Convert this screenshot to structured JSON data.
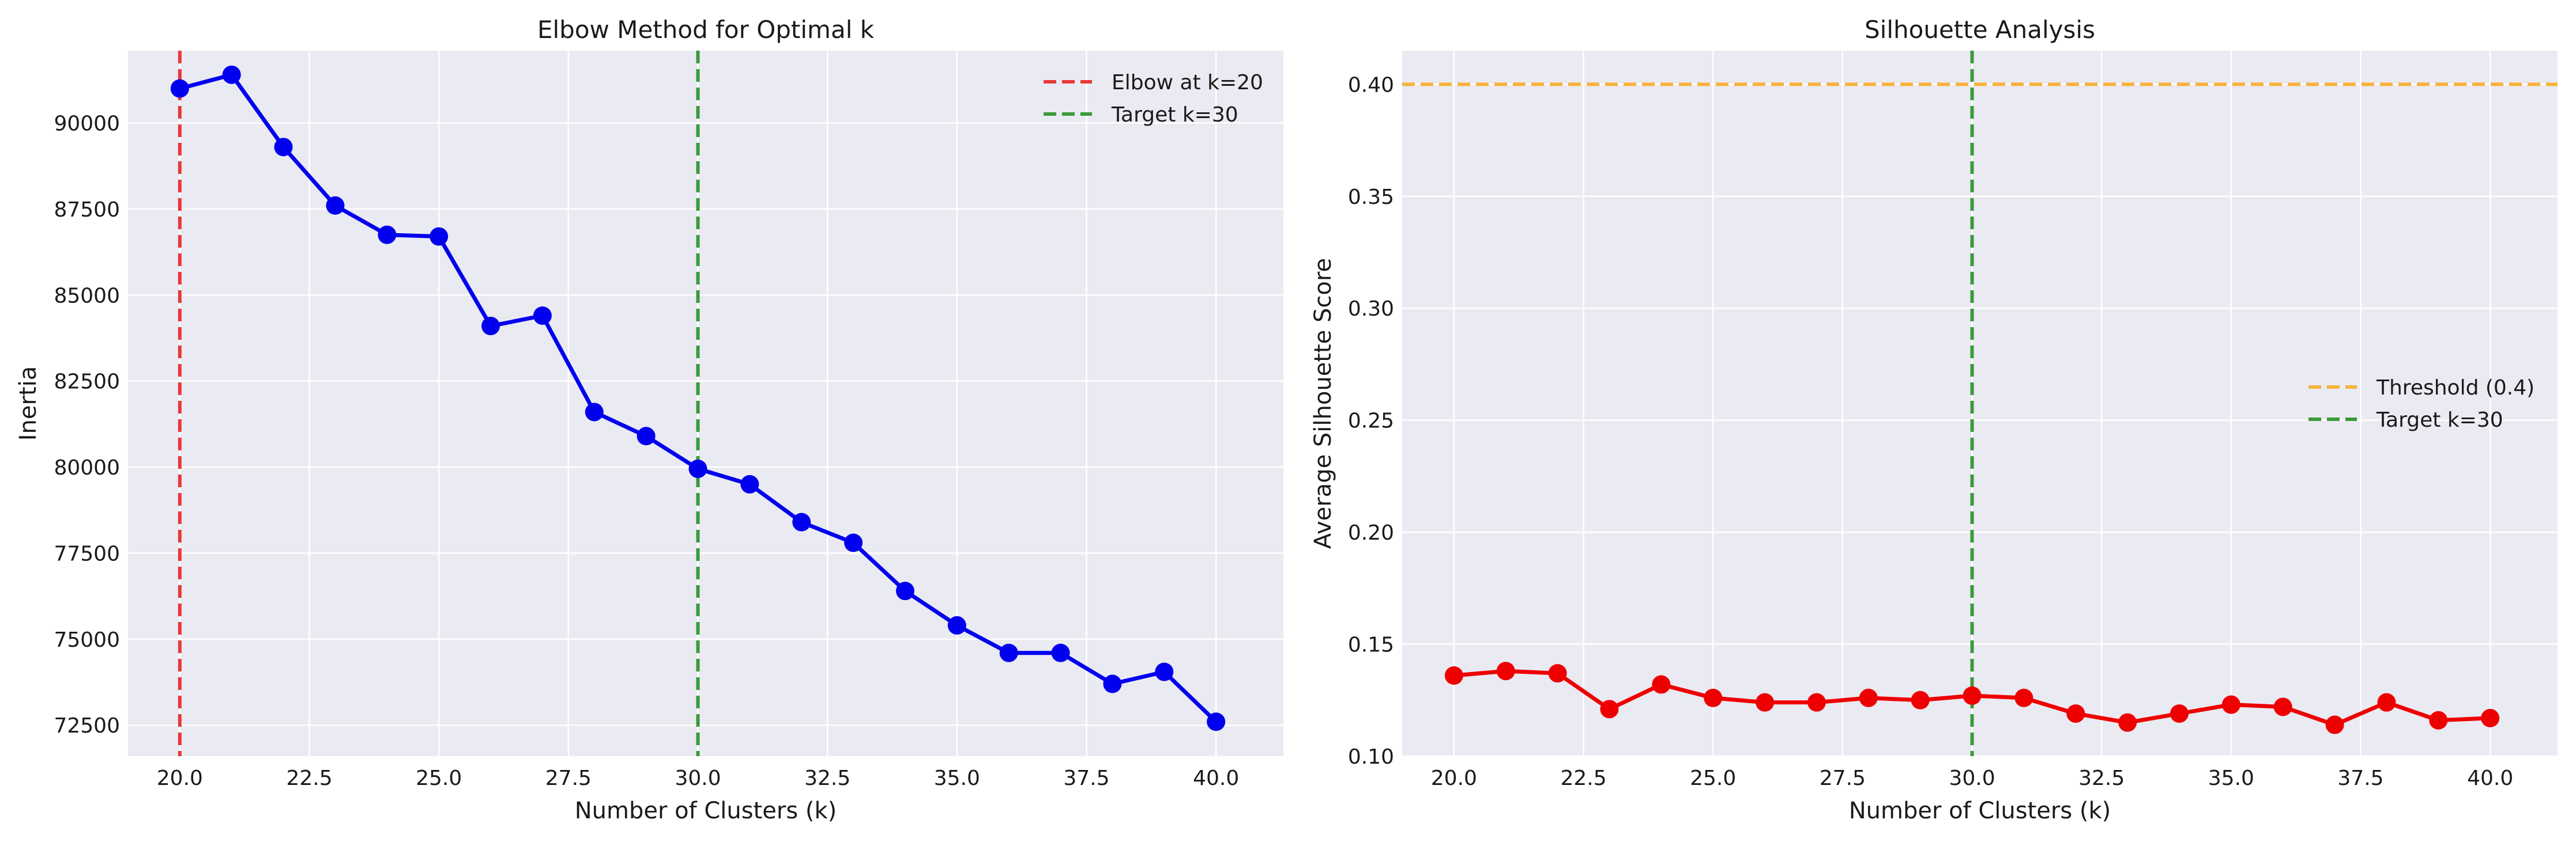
{
  "chart_data": [
    {
      "type": "line",
      "title": "Elbow Method for Optimal k",
      "xlabel": "Number of Clusters (k)",
      "ylabel": "Inertia",
      "xlim": [
        19,
        41.3
      ],
      "ylim": [
        71600,
        92100
      ],
      "xticks": [
        20,
        22.5,
        25,
        27.5,
        30,
        32.5,
        35,
        37.5,
        40
      ],
      "xtick_labels": [
        "20.0",
        "22.5",
        "25.0",
        "27.5",
        "30.0",
        "32.5",
        "35.0",
        "37.5",
        "40.0"
      ],
      "yticks": [
        72500,
        75000,
        77500,
        80000,
        82500,
        85000,
        87500,
        90000
      ],
      "ytick_labels": [
        "72500",
        "75000",
        "77500",
        "80000",
        "82500",
        "85000",
        "87500",
        "90000"
      ],
      "grid": true,
      "legend_position": "top-right",
      "series": [
        {
          "color": "#0000ee",
          "x": [
            20,
            21,
            22,
            23,
            24,
            25,
            26,
            27,
            28,
            29,
            30,
            31,
            32,
            33,
            34,
            35,
            36,
            37,
            38,
            39,
            40
          ],
          "y": [
            91000,
            91400,
            89300,
            87600,
            86750,
            86700,
            84100,
            84400,
            81600,
            80900,
            79950,
            79500,
            78400,
            77800,
            76400,
            75400,
            74600,
            74600,
            73700,
            74050,
            72600
          ]
        }
      ],
      "reference_lines": [
        {
          "orientation": "vertical",
          "value": 20,
          "color": "#e8393a",
          "label": "Elbow at k=20"
        },
        {
          "orientation": "vertical",
          "value": 30,
          "color": "#3a9a3a",
          "label": "Target k=30"
        }
      ]
    },
    {
      "type": "line",
      "title": "Silhouette Analysis",
      "xlabel": "Number of Clusters (k)",
      "ylabel": "Average Silhouette Score",
      "xlim": [
        19,
        41.3
      ],
      "ylim": [
        0.1,
        0.415
      ],
      "xticks": [
        20,
        22.5,
        25,
        27.5,
        30,
        32.5,
        35,
        37.5,
        40
      ],
      "xtick_labels": [
        "20.0",
        "22.5",
        "25.0",
        "27.5",
        "30.0",
        "32.5",
        "35.0",
        "37.5",
        "40.0"
      ],
      "yticks": [
        0.1,
        0.15,
        0.2,
        0.25,
        0.3,
        0.35,
        0.4
      ],
      "ytick_labels": [
        "0.10",
        "0.15",
        "0.20",
        "0.25",
        "0.30",
        "0.35",
        "0.40"
      ],
      "grid": true,
      "legend_position": "center-right",
      "series": [
        {
          "color": "#ee0000",
          "x": [
            20,
            21,
            22,
            23,
            24,
            25,
            26,
            27,
            28,
            29,
            30,
            31,
            32,
            33,
            34,
            35,
            36,
            37,
            38,
            39,
            40
          ],
          "y": [
            0.136,
            0.138,
            0.137,
            0.121,
            0.132,
            0.126,
            0.124,
            0.124,
            0.126,
            0.125,
            0.127,
            0.126,
            0.119,
            0.115,
            0.119,
            0.123,
            0.122,
            0.114,
            0.124,
            0.116,
            0.117
          ]
        }
      ],
      "reference_lines": [
        {
          "orientation": "horizontal",
          "value": 0.4,
          "color": "#f7b23b",
          "label": "Threshold (0.4)"
        },
        {
          "orientation": "vertical",
          "value": 30,
          "color": "#3a9a3a",
          "label": "Target k=30"
        }
      ]
    }
  ]
}
